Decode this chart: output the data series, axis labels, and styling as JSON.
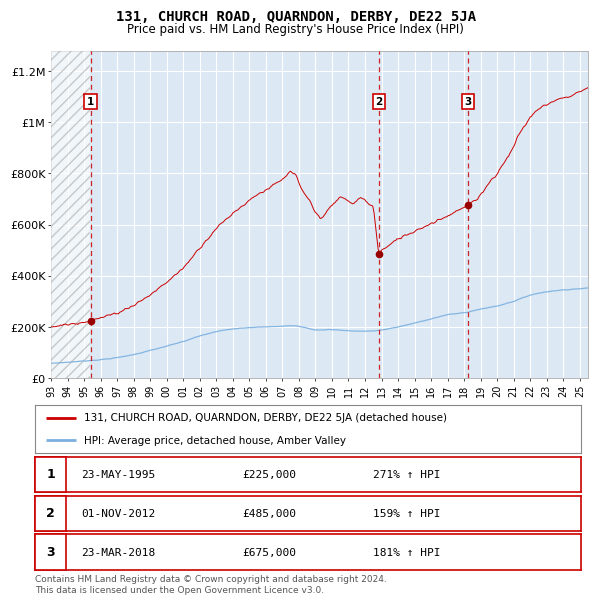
{
  "title": "131, CHURCH ROAD, QUARNDON, DERBY, DE22 5JA",
  "subtitle": "Price paid vs. HM Land Registry's House Price Index (HPI)",
  "background_color": "#dce9f5",
  "plot_bg_color": "#dce9f5",
  "hatch_region_end_year": 1995.38,
  "xlim": [
    1993.0,
    2025.5
  ],
  "ylim": [
    0,
    1280000
  ],
  "yticks": [
    0,
    200000,
    400000,
    600000,
    800000,
    1000000,
    1200000
  ],
  "ytick_labels": [
    "£0",
    "£200K",
    "£400K",
    "£600K",
    "£800K",
    "£1M",
    "£1.2M"
  ],
  "xticks": [
    1993,
    1994,
    1995,
    1996,
    1997,
    1998,
    1999,
    2000,
    2001,
    2002,
    2003,
    2004,
    2005,
    2006,
    2007,
    2008,
    2009,
    2010,
    2011,
    2012,
    2013,
    2014,
    2015,
    2016,
    2017,
    2018,
    2019,
    2020,
    2021,
    2022,
    2023,
    2024,
    2025
  ],
  "sale_dates": [
    1995.388,
    2012.836,
    2018.22
  ],
  "sale_prices": [
    225000,
    485000,
    675000
  ],
  "sale_labels": [
    "1",
    "2",
    "3"
  ],
  "legend_red_label": "131, CHURCH ROAD, QUARNDON, DERBY, DE22 5JA (detached house)",
  "legend_blue_label": "HPI: Average price, detached house, Amber Valley",
  "table_rows": [
    [
      "1",
      "23-MAY-1995",
      "£225,000",
      "271% ↑ HPI"
    ],
    [
      "2",
      "01-NOV-2012",
      "£485,000",
      "159% ↑ HPI"
    ],
    [
      "3",
      "23-MAR-2018",
      "£675,000",
      "181% ↑ HPI"
    ]
  ],
  "footer_text": "Contains HM Land Registry data © Crown copyright and database right 2024.\nThis data is licensed under the Open Government Licence v3.0.",
  "red_color": "#cc0000",
  "blue_color": "#7aafdf",
  "dot_color": "#990000"
}
